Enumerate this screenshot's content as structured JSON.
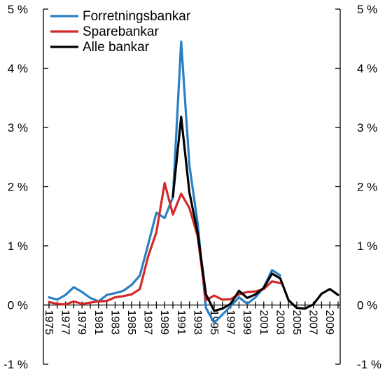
{
  "chart_data": {
    "type": "line",
    "title": "",
    "xlabel": "",
    "ylabel": "",
    "ylim": [
      -1,
      5
    ],
    "x_range": [
      1975,
      2010
    ],
    "y_ticks": [
      {
        "value": 5,
        "label": "5 %"
      },
      {
        "value": 4,
        "label": "4 %"
      },
      {
        "value": 3,
        "label": "3 %"
      },
      {
        "value": 2,
        "label": "2 %"
      },
      {
        "value": 1,
        "label": "1 %"
      },
      {
        "value": 0,
        "label": "0 %"
      },
      {
        "value": -1,
        "label": "-1 %"
      }
    ],
    "x_tick_labels": [
      "1975",
      "1977",
      "1979",
      "1981",
      "1983",
      "1985",
      "1987",
      "1989",
      "1991",
      "1993",
      "1995",
      "1997",
      "1999",
      "2001",
      "2003",
      "2005",
      "2007",
      "2009"
    ],
    "grid": false,
    "legend_position": "top-left",
    "series": [
      {
        "name": "Forretningsbankar",
        "color": "#2a7fc4",
        "points": [
          [
            1975,
            0.13
          ],
          [
            1976,
            0.09
          ],
          [
            1977,
            0.17
          ],
          [
            1978,
            0.3
          ],
          [
            1979,
            0.22
          ],
          [
            1980,
            0.12
          ],
          [
            1981,
            0.06
          ],
          [
            1982,
            0.17
          ],
          [
            1983,
            0.2
          ],
          [
            1984,
            0.24
          ],
          [
            1985,
            0.34
          ],
          [
            1986,
            0.5
          ],
          [
            1987,
            1.02
          ],
          [
            1988,
            1.56
          ],
          [
            1989,
            1.47
          ],
          [
            1990,
            1.82
          ],
          [
            1991,
            4.45
          ],
          [
            1992,
            2.36
          ],
          [
            1993,
            1.38
          ],
          [
            1994,
            -0.05
          ],
          [
            1995,
            -0.3
          ],
          [
            1996,
            -0.16
          ],
          [
            1997,
            -0.02
          ],
          [
            1998,
            0.13
          ],
          [
            1999,
            0.02
          ],
          [
            2000,
            0.13
          ],
          [
            2001,
            0.3
          ],
          [
            2002,
            0.59
          ],
          [
            2003,
            0.5
          ]
        ]
      },
      {
        "name": "Sparebankar",
        "color": "#d22a2a",
        "points": [
          [
            1975,
            0.05
          ],
          [
            1976,
            0.02
          ],
          [
            1977,
            0.01
          ],
          [
            1978,
            0.06
          ],
          [
            1979,
            0.02
          ],
          [
            1980,
            0.04
          ],
          [
            1981,
            0.06
          ],
          [
            1982,
            0.07
          ],
          [
            1983,
            0.13
          ],
          [
            1984,
            0.15
          ],
          [
            1985,
            0.18
          ],
          [
            1986,
            0.27
          ],
          [
            1987,
            0.82
          ],
          [
            1988,
            1.23
          ],
          [
            1989,
            2.06
          ],
          [
            1990,
            1.53
          ],
          [
            1991,
            1.88
          ],
          [
            1992,
            1.64
          ],
          [
            1993,
            1.16
          ],
          [
            1994,
            0.08
          ],
          [
            1995,
            0.16
          ],
          [
            1996,
            0.09
          ],
          [
            1997,
            0.1
          ],
          [
            1998,
            0.18
          ],
          [
            1999,
            0.22
          ],
          [
            2000,
            0.23
          ],
          [
            2001,
            0.27
          ],
          [
            2002,
            0.4
          ],
          [
            2003,
            0.37
          ]
        ]
      },
      {
        "name": "Alle bankar",
        "color": "#000000",
        "points": [
          [
            1990,
            1.83
          ],
          [
            1991,
            3.18
          ],
          [
            1992,
            1.9
          ],
          [
            1993,
            1.22
          ],
          [
            1994,
            0.18
          ],
          [
            1995,
            -0.1
          ],
          [
            1996,
            -0.06
          ],
          [
            1997,
            0.02
          ],
          [
            1998,
            0.24
          ],
          [
            1999,
            0.12
          ],
          [
            2000,
            0.18
          ],
          [
            2001,
            0.29
          ],
          [
            2002,
            0.53
          ],
          [
            2003,
            0.45
          ],
          [
            2004,
            0.08
          ],
          [
            2005,
            -0.05
          ],
          [
            2006,
            -0.06
          ],
          [
            2007,
            0.01
          ],
          [
            2008,
            0.19
          ],
          [
            2009,
            0.27
          ],
          [
            2010,
            0.17
          ]
        ]
      }
    ]
  }
}
